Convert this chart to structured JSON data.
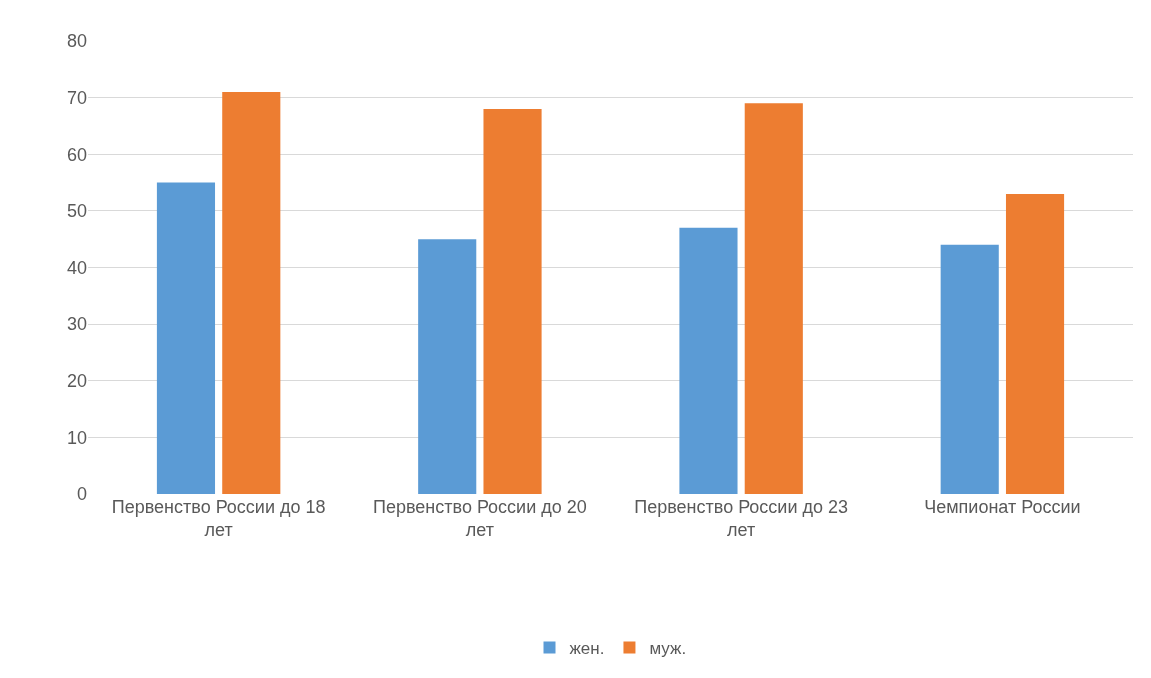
{
  "chart_data": {
    "type": "bar",
    "categories": [
      "Первенство России до 18 лет",
      "Первенство России до 20 лет",
      "Первенство России до 23 лет",
      "Чемпионат России"
    ],
    "series": [
      {
        "name": "жен.",
        "color": "#5b9bd5",
        "values": [
          55,
          45,
          47,
          44
        ]
      },
      {
        "name": "муж.",
        "color": "#ed7d31",
        "values": [
          71,
          68,
          69,
          53
        ]
      }
    ],
    "ylim": [
      0,
      80
    ],
    "yticks": [
      0,
      10,
      20,
      30,
      40,
      50,
      60,
      70,
      80
    ],
    "grid": "y",
    "legend": "bottom"
  }
}
